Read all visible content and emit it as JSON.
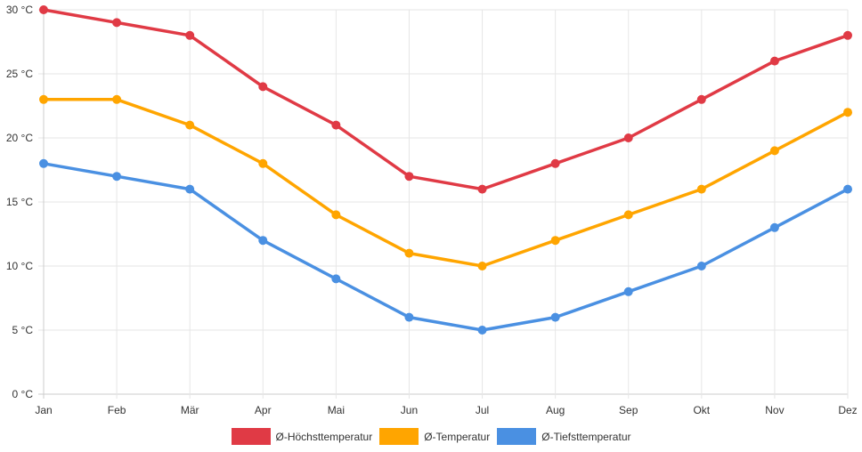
{
  "chart_data": {
    "type": "line",
    "title": "",
    "xlabel": "",
    "ylabel": "",
    "categories": [
      "Jan",
      "Feb",
      "Mär",
      "Apr",
      "Mai",
      "Jun",
      "Jul",
      "Aug",
      "Sep",
      "Okt",
      "Nov",
      "Dez"
    ],
    "ylim": [
      0,
      30
    ],
    "yticks": [
      0,
      5,
      10,
      15,
      20,
      25,
      30
    ],
    "ytick_labels": [
      "0 °C",
      "5 °C",
      "10 °C",
      "15 °C",
      "20 °C",
      "25 °C",
      "30 °C"
    ],
    "grid": true,
    "legend_position": "bottom",
    "series": [
      {
        "name": "Ø-Höchsttemperatur",
        "color": "#e03a45",
        "values": [
          30,
          29,
          28,
          24,
          21,
          17,
          16,
          18,
          20,
          23,
          26,
          28
        ]
      },
      {
        "name": "Ø-Temperatur",
        "color": "#ffa500",
        "values": [
          23,
          23,
          21,
          18,
          14,
          11,
          10,
          12,
          14,
          16,
          19,
          22
        ]
      },
      {
        "name": "Ø-Tiefsttemperatur",
        "color": "#4a90e2",
        "values": [
          18,
          17,
          16,
          12,
          9,
          6,
          5,
          6,
          8,
          10,
          13,
          16
        ]
      }
    ]
  }
}
